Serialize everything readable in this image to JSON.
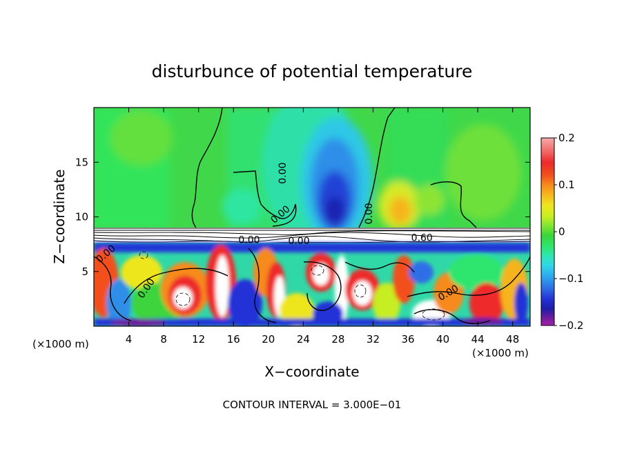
{
  "chart_data": {
    "type": "heatmap",
    "title": "disturbunce of potential temperature",
    "xlabel": "X−coordinate",
    "ylabel": "Z−coordinate",
    "x_unit_left": "(×1000 m)",
    "x_unit_right": "(×1000 m)",
    "xlim": [
      0,
      50
    ],
    "ylim": [
      0,
      20
    ],
    "x_ticks": [
      {
        "value": 4,
        "label": "4"
      },
      {
        "value": 8,
        "label": "8"
      },
      {
        "value": 12,
        "label": "12"
      },
      {
        "value": 16,
        "label": "16"
      },
      {
        "value": 20,
        "label": "20"
      },
      {
        "value": 24,
        "label": "24"
      },
      {
        "value": 28,
        "label": "28"
      },
      {
        "value": 32,
        "label": "32"
      },
      {
        "value": 36,
        "label": "36"
      },
      {
        "value": 40,
        "label": "40"
      },
      {
        "value": 44,
        "label": "44"
      },
      {
        "value": 48,
        "label": "48"
      }
    ],
    "y_ticks": [
      {
        "value": 5,
        "label": "5"
      },
      {
        "value": 10,
        "label": "10"
      },
      {
        "value": 15,
        "label": "15"
      }
    ],
    "colorbar": {
      "min": -0.2,
      "max": 0.2,
      "ticks": [
        {
          "value": 0.2,
          "label": "0.2"
        },
        {
          "value": 0.1,
          "label": "0.1"
        },
        {
          "value": 0,
          "label": "0"
        },
        {
          "value": -0.1,
          "label": "−0.1"
        },
        {
          "value": -0.2,
          "label": "−0.2"
        }
      ],
      "colors_top_to_bottom": [
        "#f7a8a8",
        "#f26a6a",
        "#ee2a2a",
        "#f2501e",
        "#f68a1e",
        "#f6b41e",
        "#eee61e",
        "#c6ee22",
        "#7ee632",
        "#3cd43c",
        "#2ee66e",
        "#2ee6b4",
        "#2ed8e6",
        "#2ea6ee",
        "#2e6ee6",
        "#2232d6",
        "#1e1ea8",
        "#6e1e9e",
        "#a81ea8"
      ]
    },
    "contour_labels": [
      {
        "x": 22.0,
        "y": 14.0,
        "text": "0.00",
        "rotate": -90
      },
      {
        "x": 21.6,
        "y": 10.0,
        "text": "0.00",
        "rotate": -40
      },
      {
        "x": 31.9,
        "y": 10.3,
        "text": "0.00",
        "rotate": -90
      },
      {
        "x": 17.8,
        "y": 7.6,
        "text": "0.00",
        "rotate": 0
      },
      {
        "x": 23.5,
        "y": 7.5,
        "text": "0.00",
        "rotate": 0
      },
      {
        "x": 37.6,
        "y": 7.8,
        "text": "0.60",
        "rotate": 0
      },
      {
        "x": 1.6,
        "y": 6.4,
        "text": "0.00",
        "rotate": -40
      },
      {
        "x": 6.3,
        "y": 3.3,
        "text": "0.00",
        "rotate": -55
      },
      {
        "x": 40.8,
        "y": 2.8,
        "text": "0.00",
        "rotate": -30
      }
    ],
    "contour_interval_text": "CONTOUR INTERVAL = 3.000E−01"
  }
}
